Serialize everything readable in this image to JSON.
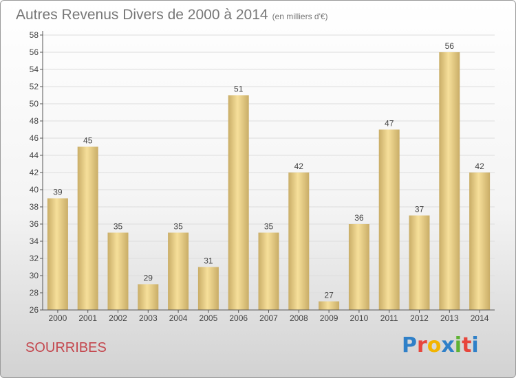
{
  "header": {
    "title": "Autres Revenus Divers de 2000 à 2014",
    "subtitle": "(en milliers d'€)"
  },
  "footer": {
    "commune": "SOURRIBES",
    "brand": [
      "P",
      "r",
      "o",
      "x",
      "i",
      "t",
      "i"
    ],
    "brand_colors": [
      "#2f80c8",
      "#e7463c",
      "#f2b400",
      "#2f80c8",
      "#5fb233",
      "#e7463c",
      "#2f80c8"
    ]
  },
  "colors": {
    "bar_light": "#f6df9a",
    "bar_dark": "#c9ad67",
    "grid": "#dddddd",
    "axis": "#555555",
    "text": "#444444"
  },
  "chart_data": {
    "type": "bar",
    "categories": [
      "2000",
      "2001",
      "2002",
      "2003",
      "2004",
      "2005",
      "2006",
      "2007",
      "2008",
      "2009",
      "2010",
      "2011",
      "2012",
      "2013",
      "2014"
    ],
    "values": [
      39,
      45,
      35,
      29,
      35,
      31,
      51,
      35,
      42,
      27,
      36,
      47,
      37,
      56,
      42
    ],
    "yticks": [
      26,
      28,
      30,
      32,
      34,
      36,
      38,
      40,
      42,
      44,
      46,
      48,
      50,
      52,
      54,
      56,
      58
    ],
    "ylim": [
      26,
      58
    ],
    "grid": true
  }
}
